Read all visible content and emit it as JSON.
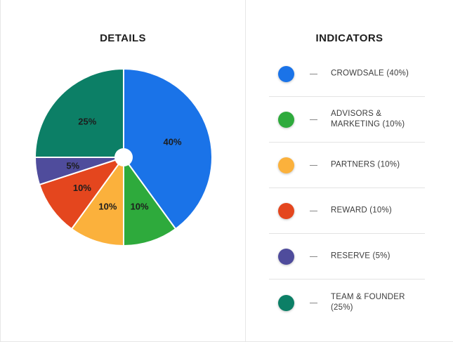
{
  "details_title": "DETAILS",
  "indicators_title": "INDICATORS",
  "chart_data": {
    "type": "pie",
    "slices": [
      {
        "label": "CROWDSALE",
        "value": 40,
        "color": "#1a73e8"
      },
      {
        "label": "ADVISORS & MARKETING",
        "value": 10,
        "color": "#2eaa3c"
      },
      {
        "label": "PARTNERS",
        "value": 10,
        "color": "#fbb13c"
      },
      {
        "label": "REWARD",
        "value": 10,
        "color": "#e4461e"
      },
      {
        "label": "RESERVE",
        "value": 5,
        "color": "#4f4c9c"
      },
      {
        "label": "TEAM & FOUNDER",
        "value": 25,
        "color": "#0c7f66"
      }
    ],
    "data_labels": [
      "40%",
      "10%",
      "10%",
      "10%",
      "5%",
      "25%"
    ]
  },
  "legend": [
    {
      "label": "CROWDSALE (40%)",
      "color": "#1a73e8",
      "icon": "circle"
    },
    {
      "label": "ADVISORS & MARKETING (10%)",
      "color": "#2eaa3c",
      "icon": "circle"
    },
    {
      "label": "PARTNERS (10%)",
      "color": "#fbb13c",
      "icon": "circle"
    },
    {
      "label": "REWARD (10%)",
      "color": "#e4461e",
      "icon": "circle"
    },
    {
      "label": "RESERVE (5%)",
      "color": "#4f4c9c",
      "icon": "circle"
    },
    {
      "label": "TEAM & FOUNDER (25%)",
      "color": "#0c7f66",
      "icon": "circle"
    }
  ]
}
